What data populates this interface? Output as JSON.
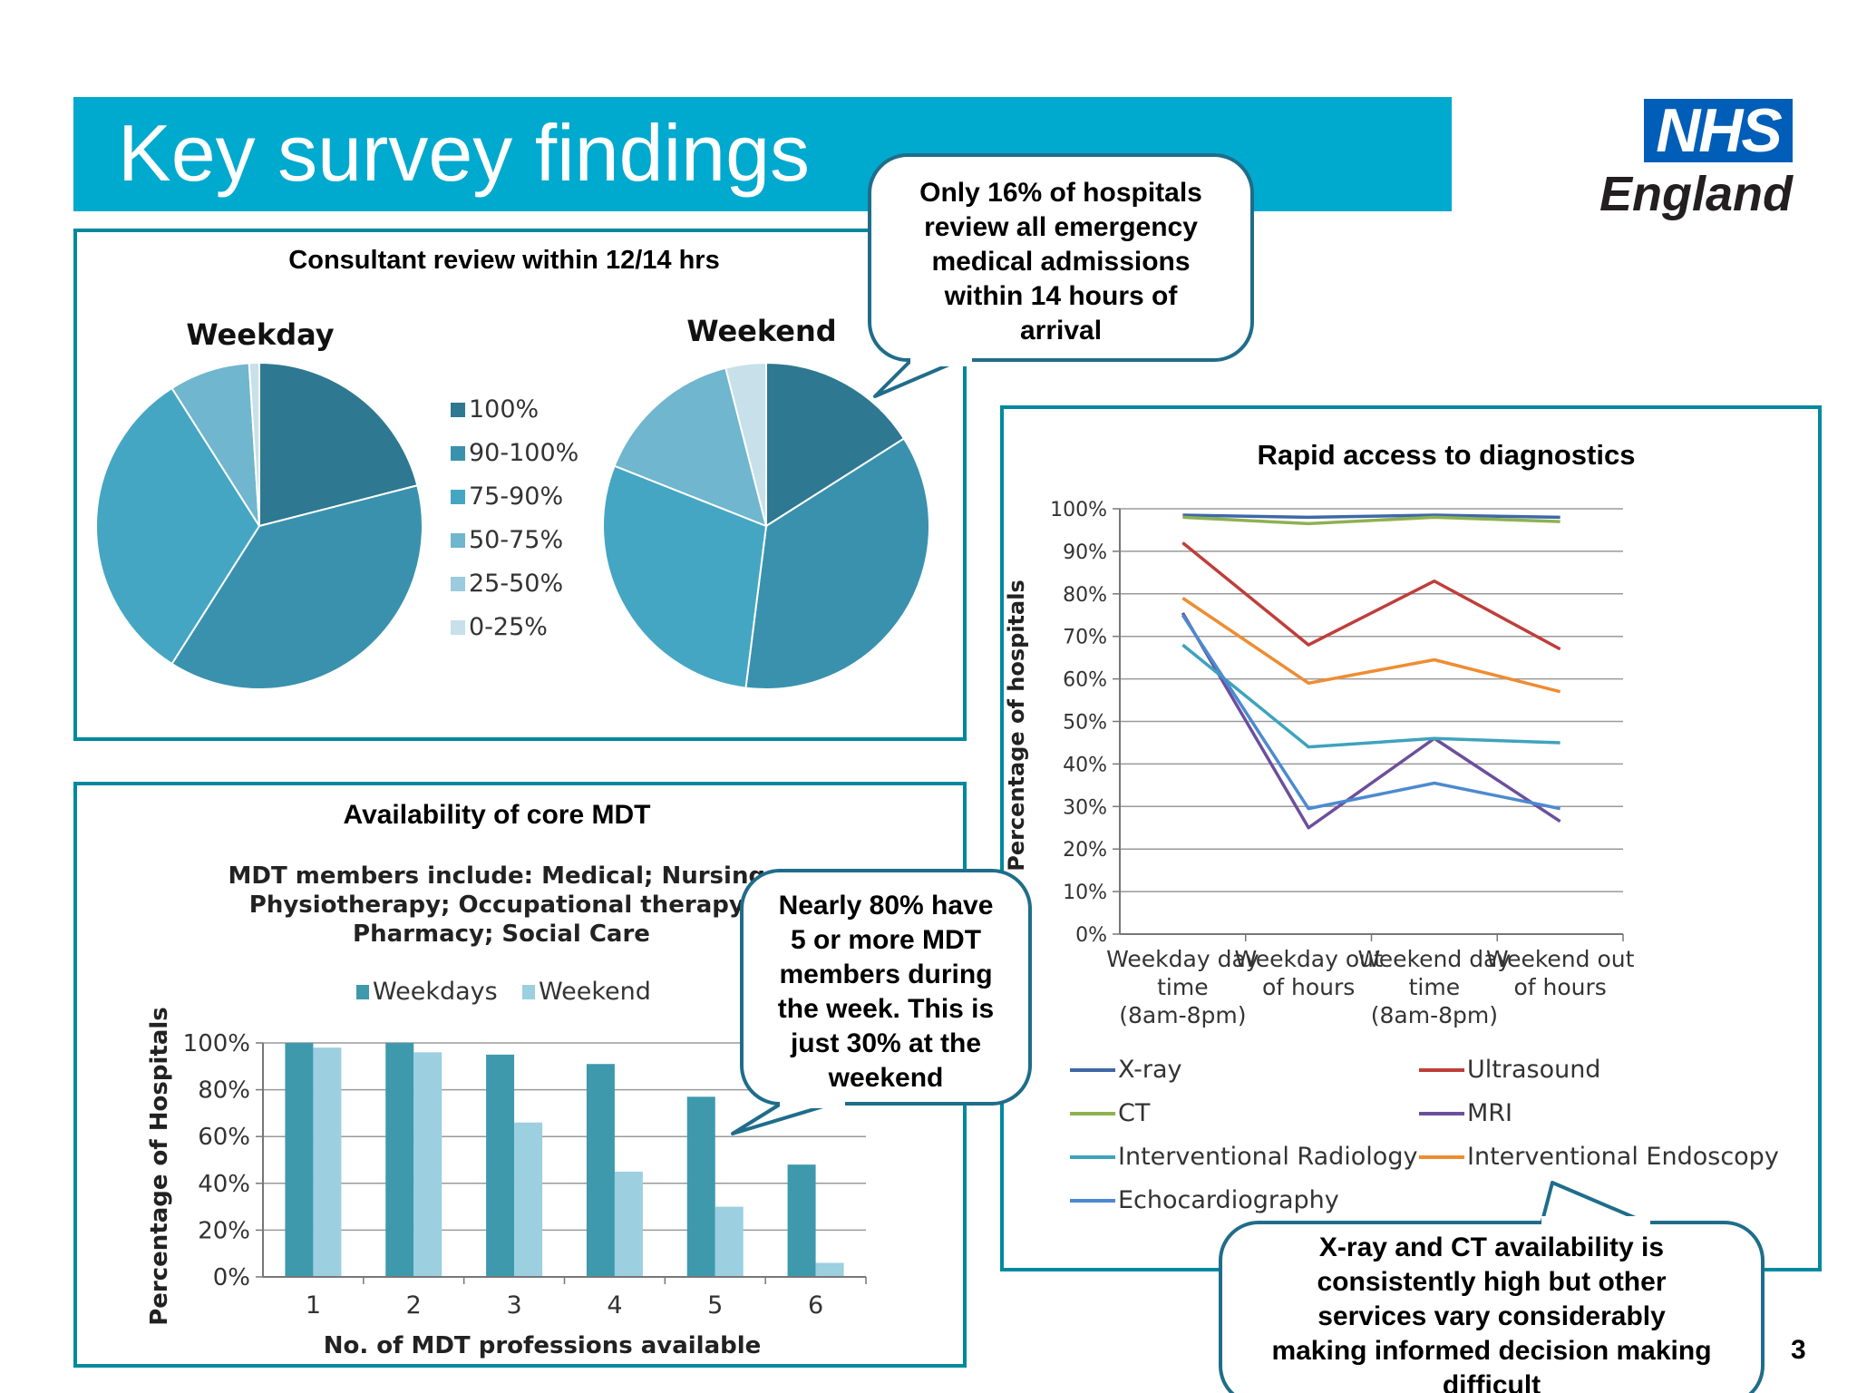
{
  "header": {
    "title": "Key survey findings",
    "logo_box": "NHS",
    "logo_sub": "England"
  },
  "page_number": "3",
  "callouts": [
    "Only 16% of hospitals review all emergency medical admissions within 14 hours of arrival",
    "Nearly 80% have 5 or more MDT members during the week. This is just 30% at the weekend",
    "X-ray and CT availability is consistently high but other services vary considerably making informed decision making difficult"
  ],
  "colors": {
    "brand": "#00a9ce",
    "nhs_blue": "#005eb8",
    "panel_border": "#00899e",
    "pie": [
      "#2e7891",
      "#3a91ae",
      "#45a6c3",
      "#70b6ce",
      "#9bcbdc",
      "#c7e0ea"
    ],
    "bar_weekdays": "#3e99ad",
    "bar_weekend": "#9ccfe0",
    "lines": [
      "#3f68a8",
      "#bf3e3a",
      "#8db251",
      "#6c4f9c",
      "#3ea3bd",
      "#ef8c32",
      "#4c8ad0"
    ]
  },
  "chart_data": [
    {
      "type": "pie",
      "title": "Consultant review within 12/14 hrs",
      "legend": [
        "100%",
        "90-100%",
        "75-90%",
        "50-75%",
        "25-50%",
        "0-25%"
      ],
      "pies": [
        {
          "label": "Weekday",
          "values": [
            21,
            38,
            32,
            8,
            0,
            1
          ]
        },
        {
          "label": "Weekend",
          "values": [
            16,
            36,
            29,
            15,
            0,
            4
          ]
        }
      ]
    },
    {
      "type": "bar",
      "title": "Availability of core MDT",
      "subtitle": "MDT members include: Medical; Nursing; Physiotherapy; Occupational therapy; Pharmacy; Social Care",
      "categories": [
        "1",
        "2",
        "3",
        "4",
        "5",
        "6"
      ],
      "series": [
        {
          "name": "Weekdays",
          "values": [
            100,
            100,
            95,
            91,
            77,
            48
          ]
        },
        {
          "name": "Weekend",
          "values": [
            98,
            96,
            66,
            45,
            30,
            6
          ]
        }
      ],
      "xlabel": "No. of MDT professions  available",
      "ylabel": "Percentage of Hospitals",
      "yticks": [
        "0%",
        "20%",
        "40%",
        "60%",
        "80%",
        "100%"
      ],
      "ylim": [
        0,
        100
      ]
    },
    {
      "type": "line",
      "title": "Rapid access to diagnostics",
      "categories": [
        [
          "Weekday day",
          "time",
          "(8am-8pm)"
        ],
        [
          "Weekday out",
          "of hours"
        ],
        [
          "Weekend day",
          "time",
          "(8am-8pm)"
        ],
        [
          "Weekend out",
          "of hours"
        ]
      ],
      "series": [
        {
          "name": "X-ray",
          "values": [
            98.5,
            98,
            98.5,
            98
          ]
        },
        {
          "name": "Ultrasound",
          "values": [
            92,
            68,
            83,
            67
          ]
        },
        {
          "name": "CT",
          "values": [
            98,
            96.5,
            98,
            97
          ]
        },
        {
          "name": "MRI",
          "values": [
            75.5,
            25,
            46,
            26.5
          ]
        },
        {
          "name": "Interventional Radiology",
          "values": [
            68,
            44,
            46,
            45
          ]
        },
        {
          "name": "Interventional Endoscopy",
          "values": [
            79,
            59,
            64.5,
            57
          ]
        },
        {
          "name": "Echocardiography",
          "values": [
            75,
            29.5,
            35.5,
            29.5
          ]
        }
      ],
      "ylabel": "Percentage of hospitals",
      "yticks": [
        "0%",
        "10%",
        "20%",
        "30%",
        "40%",
        "50%",
        "60%",
        "70%",
        "80%",
        "90%",
        "100%"
      ],
      "ylim": [
        0,
        100
      ]
    }
  ]
}
